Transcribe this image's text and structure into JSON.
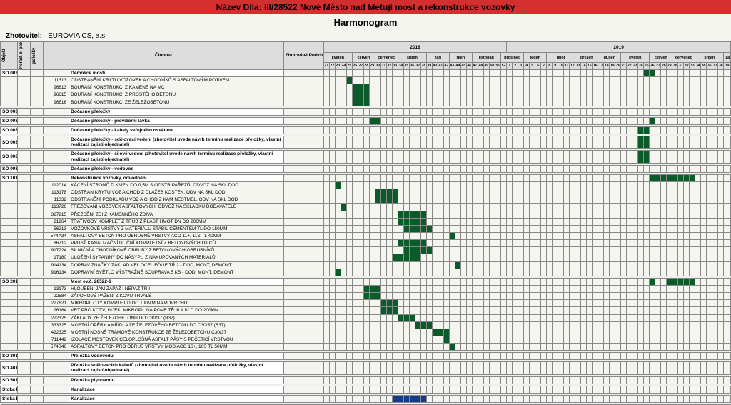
{
  "title": "Název Díla: III/28522 Nové Město nad Metují most a rekonstrukce vozovky",
  "subtitle": "Harmonogram",
  "zhotovitel_label": "Zhotovitel:",
  "zhotovitel_value": "EUROVIA CS, a.s.",
  "columns": {
    "objekt": "Objekt",
    "porad": "Pořad. č. položky",
    "polozky": "položky",
    "cinnost": "Činnost",
    "zhotovitel": "Zhotovitel Podzhotovitel"
  },
  "year_headers": [
    "2018",
    "2019"
  ],
  "month_headers": [
    "květen",
    "červen",
    "červenec",
    "srpen",
    "září",
    "říjen",
    "listopad",
    "prosinec",
    "leden",
    "únor",
    "březen",
    "duben",
    "květen",
    "červen",
    "červenec",
    "srpen",
    "září"
  ],
  "week_numbers": [
    "21",
    "22",
    "23",
    "24",
    "25",
    "26",
    "27",
    "28",
    "29",
    "30",
    "31",
    "32",
    "33",
    "34",
    "35",
    "36",
    "37",
    "38",
    "39",
    "40",
    "41",
    "42",
    "43",
    "44",
    "45",
    "46",
    "47",
    "48",
    "49",
    "50",
    "51",
    "52",
    "1",
    "2",
    "3",
    "4",
    "5",
    "6",
    "7",
    "8",
    "9",
    "10",
    "11",
    "12",
    "13",
    "14",
    "15",
    "16",
    "17",
    "18",
    "19",
    "20",
    "21",
    "22",
    "23",
    "24",
    "25",
    "26",
    "27",
    "28",
    "29",
    "30",
    "31",
    "32",
    "33",
    "34",
    "35",
    "36",
    "37",
    "38",
    "39"
  ],
  "colors": {
    "green": "#0a5a2a",
    "blue": "#153a8a",
    "red": "#d32f2f",
    "border": "#888888",
    "bg": "#f5f5f0"
  },
  "gantt_cols": 71,
  "redline_cols": [
    0,
    46,
    71
  ],
  "sections": [
    {
      "id": "SO 002",
      "title": "Demolice mostu",
      "rows": [
        {
          "code": "11313",
          "name": "ODSTRANĚNÍ KRYTU VOZOVEK A CHODNÍKŮ S ASFALTOVÝM POJIVEM",
          "bar": [
            4,
            5
          ]
        },
        {
          "code": "96613",
          "name": "BOURÁNÍ KONSTRUKCÍ Z KAMENE NA MC",
          "bar": [
            5,
            8
          ]
        },
        {
          "code": "96615",
          "name": "BOURÁNÍ KONSTRUKCÍ Z PROSTÉHO BETONU",
          "bar": [
            5,
            8
          ]
        },
        {
          "code": "96616",
          "name": "BOURÁNÍ KONSTRUKCÍ ZE ŽELEZOBETONU",
          "bar": [
            5,
            8
          ]
        }
      ],
      "head_bar": [
        56,
        58
      ]
    },
    {
      "id": "SO 003",
      "title": "Dočasné přeložky"
    },
    {
      "id": "SO 003.1",
      "title": "Dočasné přeložky - provizorní lávka",
      "head_bar": [
        8,
        10
      ],
      "head_bar2": [
        57,
        58
      ]
    },
    {
      "id": "SO 003.2",
      "title": "Dočasné přeložky - kabely veřejného osvětlení",
      "head_bar2": [
        55,
        57
      ]
    },
    {
      "id": "SO 003.3",
      "title": "Dočasné přeložky - sdělovací vedení (zhotovitel uvede návrh termínu realizace přeložky, vlastní realizaci zajistí objednatel)",
      "head_bar2": [
        55,
        57
      ]
    },
    {
      "id": "SO 003.4",
      "title": "Dočasné přeložky - silové vedení (zhotovitel uvede návrh termínu realizace přeložky, vlastní realizaci zajistí objednatel)",
      "head_bar2": [
        55,
        57
      ]
    },
    {
      "id": "SO 003.5",
      "title": "Dočasné přeložky - vodovod"
    },
    {
      "id": "SO 101",
      "title": "Rekonstrukce vozovky, odvodnění",
      "rows": [
        {
          "code": "112014",
          "name": "KÁCENÍ STROMŮ D KMEN DO 0,5M S ODSTR PAŘEZŮ, ODVOZ NA SKL DOD",
          "bar": [
            2,
            3
          ]
        },
        {
          "code": "113178",
          "name": "ODSTRAN KRYTU VOZ A CHOD Z DLAŽEB KOSTEK, ODV NA SKL DOD",
          "bar": [
            9,
            13
          ]
        },
        {
          "code": "11332",
          "name": "ODSTRANĚNÍ PODKLADU VOZ A CHOD Z KAM NESTMEL, ODV NA SKL DOD",
          "bar": [
            9,
            13
          ]
        },
        {
          "code": "113726",
          "name": "FRÉZOVÁNÍ VOZOVEK ASFALTOVÝCH, ODVOZ NA SKLÁDKU DODAVATELE",
          "bar": [
            3,
            4
          ]
        },
        {
          "code": "327215",
          "name": "PŘEZDĚNÍ ZDI Z KAMENNÉHO ZDIVA",
          "bar": [
            13,
            18
          ]
        },
        {
          "code": "21264",
          "name": "TRATIVODY KOMPLET Z TRUB Z PLAST HMOT DN DO 200MM",
          "bar": [
            13,
            18
          ]
        },
        {
          "code": "56213",
          "name": "VOZOVKOVÉ VRSTVY Z MATERIÁLU STABIL CEMENTEM TL DO 150MM",
          "bar": [
            14,
            19
          ]
        },
        {
          "code": "574A34",
          "name": "ASFALTOVÝ BETON PRO OBRUSNÉ VRSTVY ACO 11+, 11S TL 40MM",
          "bar": [
            22,
            23
          ]
        },
        {
          "code": "86712",
          "name": "VPUSŤ KANALIZAČNÍ ULIČNÍ KOMPLETNÍ Z BETONOVÝCH DÍLCŮ",
          "bar": [
            13,
            18
          ]
        },
        {
          "code": "917224",
          "name": "SILNIČNÍ A CHODNÍKOVÉ OBRUBY Z BETONOVÝCH OBRUBNÍKŮ",
          "bar": [
            14,
            19
          ]
        },
        {
          "code": "17180",
          "name": "ULOŽENÍ SYPANINY DO NÁSYPU Z NAKUPOVANÝCH MATERIÁLŮ",
          "bar": [
            12,
            17
          ]
        },
        {
          "code": "914134",
          "name": "DOPRAV ZNAČKY ZÁKLAD VEL OCEL FÓLIE TŘ 2 - DOD, MONT, DEMONT",
          "bar": [
            23,
            24
          ]
        },
        {
          "code": "916134",
          "name": "DOPRAVNÍ SVĚTLO VÝSTRAŽNÉ SOUPRAVA 5 KS - DOD, MONT, DEMONT",
          "bar": [
            2,
            3
          ]
        }
      ],
      "head_bar": [
        57,
        65
      ]
    },
    {
      "id": "SO 201",
      "title": "Most ev.č. 28522-1",
      "rows": [
        {
          "code": "13173",
          "name": "HLOUBENÍ JAM ZAPAŽ I NEPAŽ TŘ I",
          "bar": [
            7,
            10
          ]
        },
        {
          "code": "22584",
          "name": "ZÁPOROVÉ PAŽENÍ Z KOVU TRVALÉ",
          "bar": [
            7,
            10
          ]
        },
        {
          "code": "227821",
          "name": "MIKROPILOTY KOMPLET D DO 100MM NA POVRCHU",
          "bar": [
            10,
            13
          ]
        },
        {
          "code": "26184",
          "name": "VRT PRO KOTV, INJEK, MIKROPIL NA POVR TŘ III A IV D DO 200MM",
          "bar": [
            10,
            13
          ]
        },
        {
          "code": "272325",
          "name": "ZÁKLADY ZE ŽELEZOBETONU DO C30/37 (B37)",
          "bar": [
            13,
            16
          ]
        },
        {
          "code": "333325",
          "name": "MOSTNÍ OPĚRY A KŘÍDLA ZE ŽELEZOVÉHO BETONU DO C30/37 (B37)",
          "bar": [
            16,
            19
          ]
        },
        {
          "code": "422325",
          "name": "MOSTNÍ NOSNÉ TRÁMOVÉ KONSTRUKCE ZE ŽELEZOBETONU C30/37",
          "bar": [
            19,
            22
          ]
        },
        {
          "code": "711442",
          "name": "IZOLACE MOSTOVEK CELOPLOŠNÁ ASFALT PÁSY S PEČETICÍ VRSTVOU",
          "bar": [
            21,
            22
          ]
        },
        {
          "code": "574B46",
          "name": "ASFALTOVÝ BETON PRO OBRUS VRSTVY MOD ACO 16+, 16S TL 50MM",
          "bar": [
            22,
            23
          ]
        }
      ],
      "head_bar": [
        57,
        58
      ],
      "head_bar2": [
        60,
        65
      ]
    },
    {
      "id": "SO 301",
      "title": "Přeložka vodovodu"
    },
    {
      "id": "SO 401",
      "title": "Přeložka sdělovacích kabelů (zhotovitel uvede návrh termínu realizace přeložky, vlastní realizaci zajistí objednatel)"
    },
    {
      "id": "SO 501",
      "title": "Přeložka plynovodu"
    },
    {
      "id": "Stoka F",
      "title": "Kanalizace"
    },
    {
      "id": "Stoka E",
      "title": "Kanalizace",
      "head_bar_blue": [
        12,
        18
      ]
    }
  ]
}
